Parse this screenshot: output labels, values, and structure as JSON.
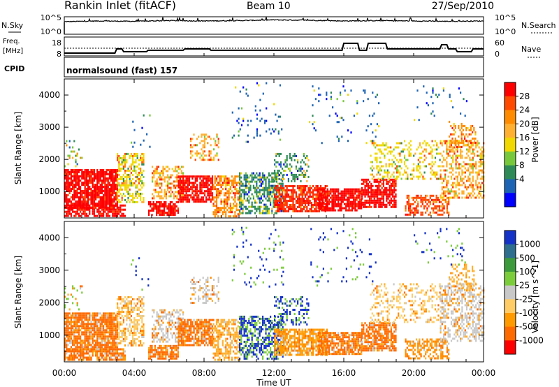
{
  "header": {
    "station": "Rankin Inlet (fitACF)",
    "beam": "Beam 10",
    "date": "27/Sep/2010"
  },
  "noise_panel": {
    "left_label": "N.Sky",
    "left_ticks": [
      "10^5",
      "10^0"
    ],
    "right_ticks": [
      "10^5",
      "10^0"
    ],
    "right_label": "N.Search"
  },
  "freq_panel": {
    "left_label_1": "Freq.",
    "left_label_2": "[MHz]",
    "left_ticks": [
      "18",
      "8"
    ],
    "right_ticks": [
      "60",
      "0"
    ],
    "right_label": "Nave"
  },
  "cpid": {
    "label": "CPID",
    "value": "normalsound (fast) 157"
  },
  "x_axis": {
    "label": "Time UT",
    "ticks": [
      "00:00",
      "04:00",
      "08:00",
      "12:00",
      "16:00",
      "20:00",
      "00:00"
    ],
    "hours": [
      0,
      4,
      8,
      12,
      16,
      20,
      24
    ]
  },
  "power_panel": {
    "ylabel": "Slant Range [km]",
    "yticks": [
      1000,
      2000,
      3000,
      4000
    ],
    "ylim": [
      180,
      4500
    ],
    "colorbar_label": "Power [dB]",
    "colorbar_ticks": [
      "28",
      "24",
      "20",
      "16",
      "12",
      "8",
      "4"
    ],
    "colorbar_colors": [
      "#ff0000",
      "#ff4a00",
      "#ff8c00",
      "#ffb030",
      "#f0d800",
      "#78c83c",
      "#2e8b57",
      "#1e64b4",
      "#0000ff"
    ]
  },
  "velocity_panel": {
    "ylabel": "Slant Range [km]",
    "yticks": [
      1000,
      2000,
      3000,
      4000
    ],
    "ylim": [
      180,
      4500
    ],
    "colorbar_label": "Velocity [m s^-1]",
    "colorbar_ticks": [
      "1000",
      "500",
      "100",
      "25",
      "-25",
      "-100",
      "-500",
      "-1000"
    ],
    "colorbar_colors": [
      "#1432c8",
      "#2e6e8e",
      "#3c9a3c",
      "#7ccd3c",
      "#c8c8c8",
      "#ffcc66",
      "#ff9a00",
      "#ff6a00",
      "#ff0000"
    ]
  },
  "chart_data": [
    {
      "type": "line",
      "name": "noise",
      "x": [
        0,
        2,
        4,
        6,
        8,
        10,
        12,
        14,
        16,
        18,
        20,
        22,
        24
      ],
      "series": [
        {
          "values": [
            3.6,
            3.8,
            3.7,
            3.9,
            3.8,
            3.9,
            4.1,
            4.0,
            3.8,
            3.9,
            3.8,
            3.7,
            3.8
          ]
        }
      ],
      "ylim": [
        0,
        5
      ],
      "yscale": "log"
    },
    {
      "type": "line",
      "name": "frequency",
      "x": [
        0,
        2.9,
        3.0,
        3.3,
        3.4,
        4.7,
        4.8,
        6.8,
        6.9,
        8.3,
        8.4,
        15.9,
        16.0,
        16.8,
        16.9,
        17.3,
        17.4,
        18.4,
        18.5,
        21.5,
        21.6,
        21.9,
        22.0,
        22.4,
        22.5,
        23.3,
        23.4,
        24.0
      ],
      "series": [
        {
          "values": [
            10,
            10,
            13,
            13,
            11,
            11,
            12,
            12,
            13,
            13,
            12,
            12,
            17,
            17,
            12,
            12,
            17,
            17,
            13,
            13,
            16,
            16,
            13,
            13,
            11,
            11,
            13,
            13
          ]
        }
      ],
      "ylim": [
        8,
        18
      ]
    },
    {
      "type": "heatmap",
      "name": "power",
      "x_range": [
        0,
        24
      ],
      "y_range": [
        180,
        4500
      ],
      "colorbar": [
        0,
        30
      ]
    },
    {
      "type": "heatmap",
      "name": "velocity",
      "x_range": [
        0,
        24
      ],
      "y_range": [
        180,
        4500
      ],
      "colorbar": [
        -1000,
        1000
      ]
    }
  ]
}
